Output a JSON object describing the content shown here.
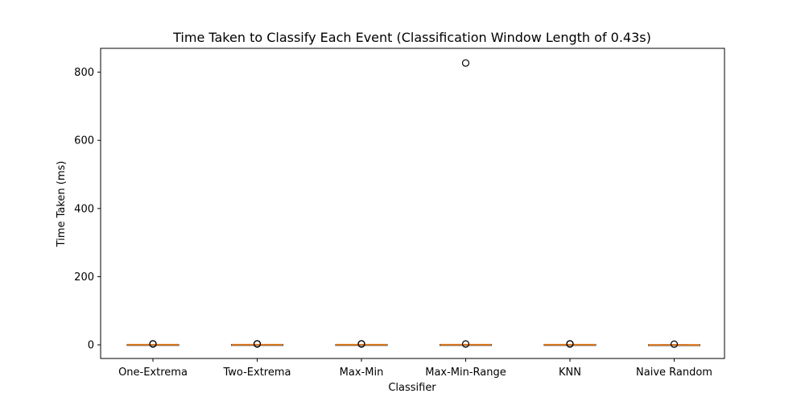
{
  "chart_data": {
    "type": "box",
    "title": "Time Taken to Classify Each Event (Classification Window Length of 0.43s)",
    "xlabel": "Classifier",
    "ylabel": "Time Taken (ms)",
    "categories": [
      "One-Extrema",
      "Two-Extrema",
      "Max-Min",
      "Max-Min-Range",
      "KNN",
      "Naive Random"
    ],
    "ylim": [
      -40,
      870
    ],
    "yticks": [
      0,
      200,
      400,
      600,
      800
    ],
    "grid": false,
    "boxes": [
      {
        "category": "One-Extrema",
        "whisker_low": 0.2,
        "q1": 0.3,
        "median": 0.5,
        "q3": 0.7,
        "whisker_high": 1.0,
        "fliers": [
          2.5,
          3.0
        ]
      },
      {
        "category": "Two-Extrema",
        "whisker_low": 0.2,
        "q1": 0.3,
        "median": 0.5,
        "q3": 0.7,
        "whisker_high": 1.0,
        "fliers": [
          2.5,
          3.0
        ]
      },
      {
        "category": "Max-Min",
        "whisker_low": 0.2,
        "q1": 0.3,
        "median": 0.5,
        "q3": 0.7,
        "whisker_high": 1.0,
        "fliers": [
          2.5,
          3.0
        ]
      },
      {
        "category": "Max-Min-Range",
        "whisker_low": 0.2,
        "q1": 0.3,
        "median": 0.5,
        "q3": 0.7,
        "whisker_high": 1.0,
        "fliers": [
          2.5,
          827
        ]
      },
      {
        "category": "KNN",
        "whisker_low": 0.2,
        "q1": 0.3,
        "median": 0.5,
        "q3": 0.7,
        "whisker_high": 1.0,
        "fliers": [
          2.5,
          3.0
        ]
      },
      {
        "category": "Naive Random",
        "whisker_low": 0.0,
        "q1": 0.0,
        "median": 0.0,
        "q3": 0.3,
        "whisker_high": 0.8,
        "fliers": [
          2.0
        ]
      }
    ],
    "colors": {
      "box": "#000000",
      "median": "#e07b20",
      "flier": "#000000"
    }
  }
}
